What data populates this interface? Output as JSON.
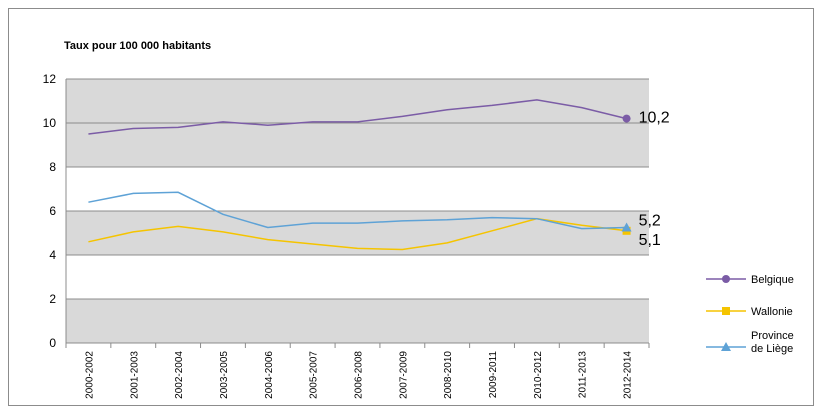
{
  "chart_data": {
    "type": "line",
    "title": "Taux pour 100 000 habitants",
    "xlabel": "",
    "ylabel": "",
    "ylim": [
      0,
      12
    ],
    "y_ticks": [
      0,
      2,
      4,
      6,
      8,
      10,
      12
    ],
    "bands": "alternating grey bands between 0-2, 4-6, 8-10, 10-12 (grey) and 2-4, 6-8 (white)",
    "grid": true,
    "legend_position": "right",
    "categories": [
      "2000-2002",
      "2001-2003",
      "2002-2004",
      "2003-2005",
      "2004-2006",
      "2005-2007",
      "2006-2008",
      "2007-2009",
      "2008-2010",
      "2009-2011",
      "2010-2012",
      "2011-2013",
      "2012-2014"
    ],
    "series": [
      {
        "name": "Belgique",
        "color": "#7b5ca6",
        "marker": "circle",
        "values": [
          9.5,
          9.75,
          9.8,
          10.05,
          9.9,
          10.05,
          10.05,
          10.3,
          10.6,
          10.8,
          11.05,
          10.7,
          10.2
        ],
        "end_label": "10,2"
      },
      {
        "name": "Wallonie",
        "color": "#f5c400",
        "marker": "square",
        "values": [
          4.6,
          5.05,
          5.3,
          5.05,
          4.7,
          4.5,
          4.3,
          4.25,
          4.55,
          5.1,
          5.65,
          5.35,
          5.1
        ],
        "end_label": "5,1"
      },
      {
        "name": "Province de Liège",
        "legend_lines": [
          "Province",
          "de Liège"
        ],
        "color": "#5ea2d6",
        "marker": "triangle",
        "values": [
          6.4,
          6.8,
          6.85,
          5.85,
          5.25,
          5.45,
          5.45,
          5.55,
          5.6,
          5.7,
          5.65,
          5.2,
          5.25
        ],
        "end_label": "5,2"
      }
    ]
  }
}
